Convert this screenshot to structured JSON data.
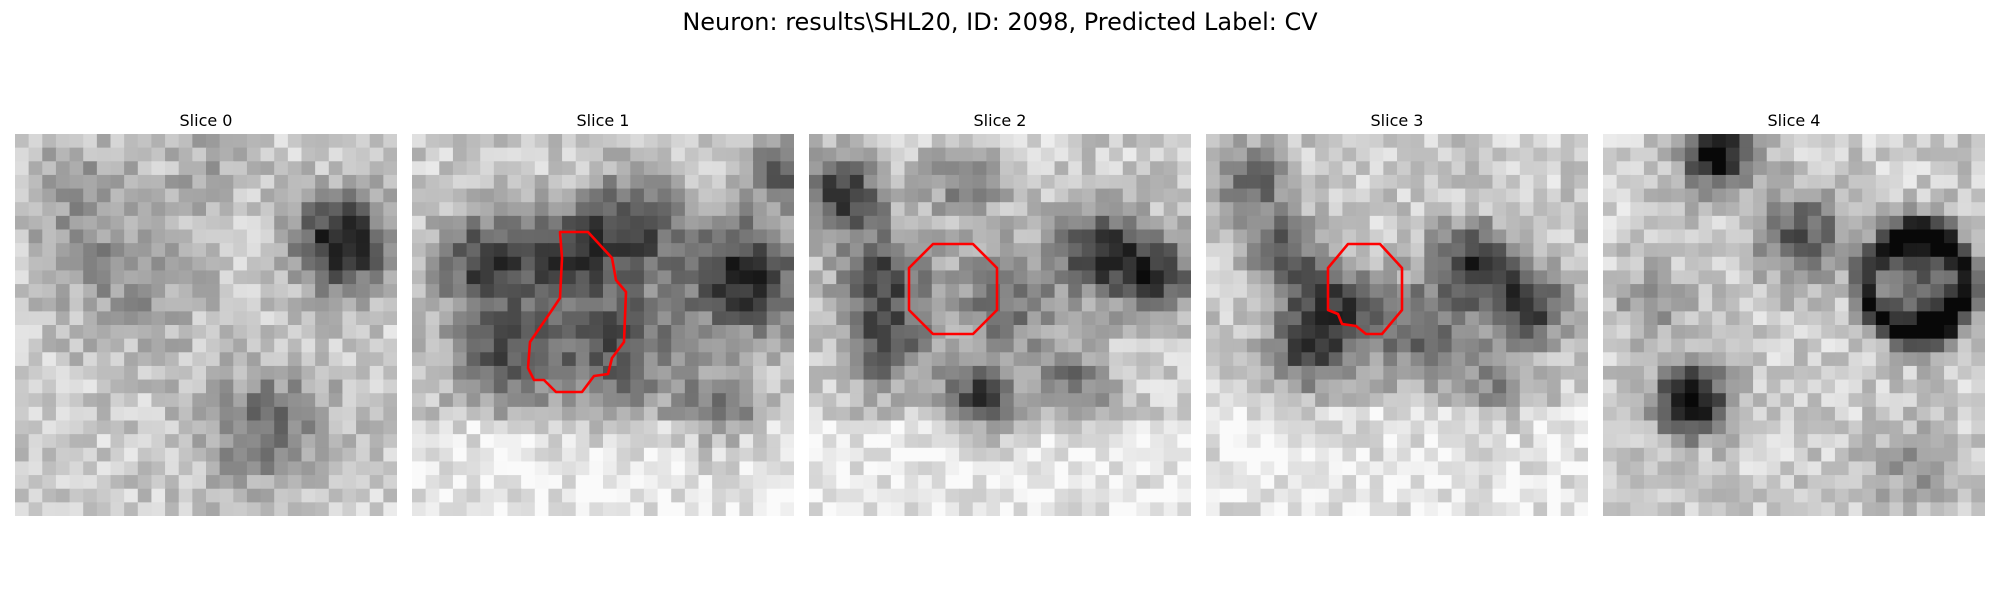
{
  "figure": {
    "title": "Neuron: results\\SHL20, ID: 2098, Predicted Label: CV",
    "contour_color": "#ff0000",
    "colormap": "gray",
    "panels": [
      {
        "title": "Slice 0",
        "has_contour": false
      },
      {
        "title": "Slice 1",
        "has_contour": true
      },
      {
        "title": "Slice 2",
        "has_contour": true
      },
      {
        "title": "Slice 3",
        "has_contour": true
      },
      {
        "title": "Slice 4",
        "has_contour": false
      }
    ]
  }
}
